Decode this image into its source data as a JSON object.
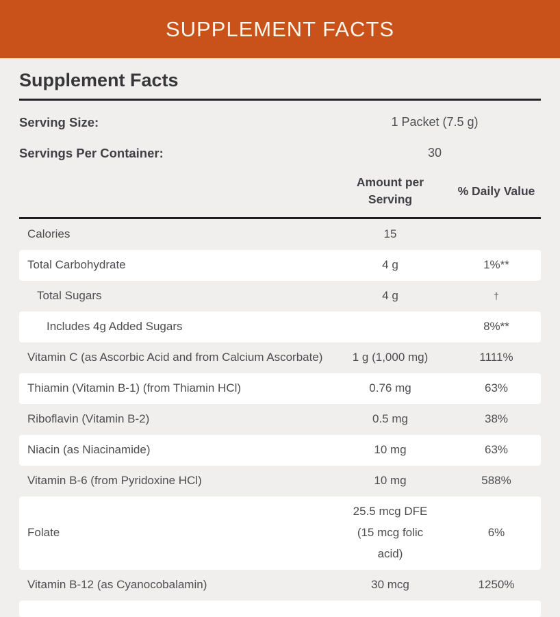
{
  "banner": {
    "title": "SUPPLEMENT FACTS"
  },
  "panel": {
    "heading": "Supplement Facts",
    "serving_info": [
      {
        "label": "Serving Size:",
        "value": "1 Packet (7.5 g)"
      },
      {
        "label": "Servings Per Container:",
        "value": "30"
      }
    ],
    "columns": {
      "amount": "Amount per Serving",
      "daily_value": "% Daily Value"
    },
    "rows": [
      {
        "name": "Calories",
        "amount": "15",
        "dv": "",
        "indent": 0
      },
      {
        "name": "Total Carbohydrate",
        "amount": "4 g",
        "dv": "1%**",
        "indent": 0
      },
      {
        "name": "Total Sugars",
        "amount": "4 g",
        "dv": "†",
        "indent": 1
      },
      {
        "name": "Includes 4g Added Sugars",
        "amount": "",
        "dv": "8%**",
        "indent": 2
      },
      {
        "name": "Vitamin C (as Ascorbic Acid and from Calcium Ascorbate)",
        "amount": "1 g (1,000 mg)",
        "dv": "1111%",
        "indent": 0
      },
      {
        "name": "Thiamin (Vitamin B-1) (from Thiamin HCl)",
        "amount": "0.76 mg",
        "dv": "63%",
        "indent": 0
      },
      {
        "name": "Riboflavin (Vitamin B-2)",
        "amount": "0.5 mg",
        "dv": "38%",
        "indent": 0
      },
      {
        "name": "Niacin (as Niacinamide)",
        "amount": "10 mg",
        "dv": "63%",
        "indent": 0
      },
      {
        "name": "Vitamin B-6 (from Pyridoxine HCl)",
        "amount": "10 mg",
        "dv": "588%",
        "indent": 0
      },
      {
        "name": "Folate",
        "amount": "25.5 mcg DFE\n(15 mcg folic\nacid)",
        "dv": "6%",
        "indent": 0
      },
      {
        "name": "Vitamin B-12 (as Cyanocobalamin)",
        "amount": "30 mcg",
        "dv": "1250%",
        "indent": 0
      }
    ]
  },
  "colors": {
    "banner_background": "#C9511A",
    "banner_text": "#FBF5EA",
    "page_background": "#F0EFED",
    "row_highlight": "#FFFFFF",
    "rule_lines": "#1F1F21"
  }
}
